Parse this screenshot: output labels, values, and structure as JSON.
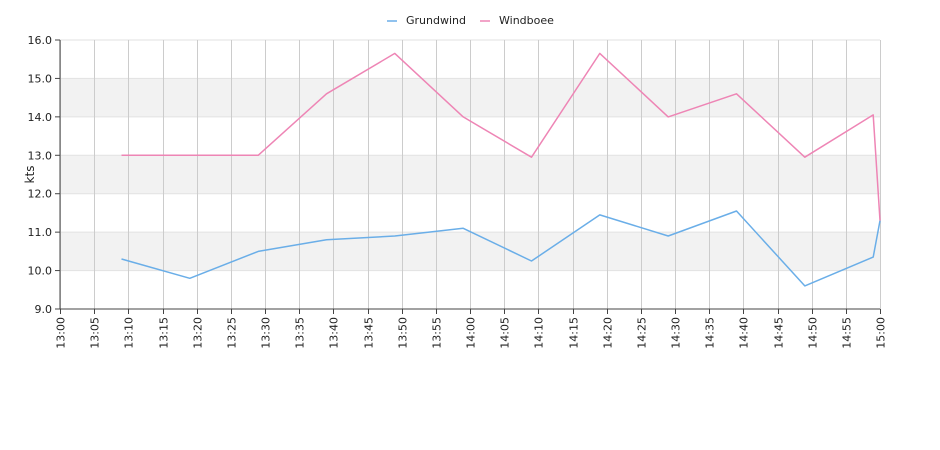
{
  "chart_data": {
    "type": "line",
    "title": "",
    "xlabel": "",
    "ylabel": "kts",
    "ylim": [
      9.0,
      16.0
    ],
    "y_ticks": [
      "9.0",
      "10.0",
      "11.0",
      "12.0",
      "13.0",
      "14.0",
      "15.0",
      "16.0"
    ],
    "x_ticks": [
      "13:00",
      "13:05",
      "13:10",
      "13:15",
      "13:20",
      "13:25",
      "13:30",
      "13:35",
      "13:40",
      "13:45",
      "13:50",
      "13:55",
      "14:00",
      "14:05",
      "14:10",
      "14:15",
      "14:20",
      "14:25",
      "14:30",
      "14:35",
      "14:40",
      "14:45",
      "14:50",
      "14:55",
      "15:00"
    ],
    "xlim": [
      "13:00",
      "15:00"
    ],
    "grid": true,
    "legend_position": "top-center",
    "series": [
      {
        "name": "Grundwind",
        "color": "#6aaee8",
        "points": [
          [
            "13:09",
            10.3
          ],
          [
            "13:19",
            9.8
          ],
          [
            "13:29",
            10.5
          ],
          [
            "13:39",
            10.8
          ],
          [
            "13:49",
            10.9
          ],
          [
            "13:59",
            11.1
          ],
          [
            "14:09",
            10.25
          ],
          [
            "14:19",
            11.45
          ],
          [
            "14:29",
            10.9
          ],
          [
            "14:39",
            11.55
          ],
          [
            "14:49",
            9.6
          ],
          [
            "14:59",
            10.35
          ],
          [
            "15:00",
            11.3
          ]
        ]
      },
      {
        "name": "Windboee",
        "color": "#ee85b5",
        "points": [
          [
            "13:09",
            13.0
          ],
          [
            "13:19",
            13.0
          ],
          [
            "13:29",
            13.0
          ],
          [
            "13:39",
            14.6
          ],
          [
            "13:49",
            15.65
          ],
          [
            "13:59",
            14.0
          ],
          [
            "14:09",
            12.95
          ],
          [
            "14:19",
            15.65
          ],
          [
            "14:29",
            14.0
          ],
          [
            "14:39",
            14.6
          ],
          [
            "14:49",
            12.95
          ],
          [
            "14:59",
            14.05
          ],
          [
            "15:00",
            11.3
          ]
        ]
      }
    ]
  }
}
